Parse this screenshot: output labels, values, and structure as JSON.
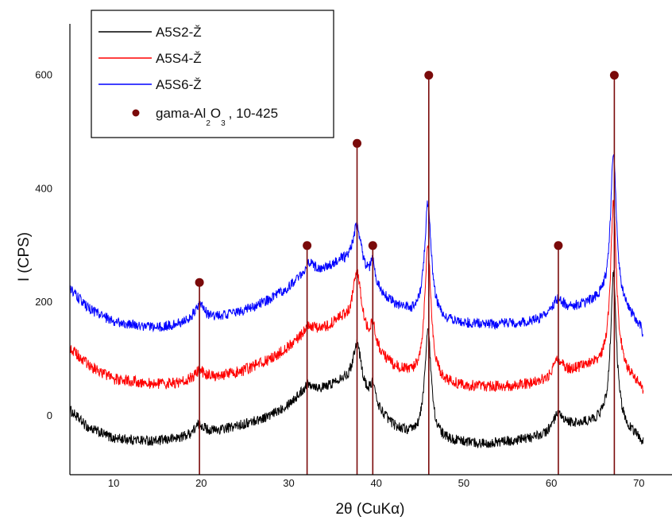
{
  "chart_data": {
    "type": "line",
    "title": "",
    "xlabel": "2θ (CuKα)",
    "ylabel": "I (CPS)",
    "xlim": [
      5,
      73
    ],
    "ylim": [
      -140,
      720
    ],
    "x_ticks": [
      10,
      20,
      30,
      40,
      50,
      60,
      70
    ],
    "y_ticks": [
      0,
      200,
      400,
      600
    ],
    "x_tick_labels": [
      "10",
      "20",
      "30",
      "40",
      "50",
      "60",
      "70"
    ],
    "y_tick_labels": [
      "0",
      "200",
      "400",
      "600"
    ],
    "grid": false,
    "legend_position": "top-left",
    "colors": {
      "series_1": "#000000",
      "series_2": "#ff0000",
      "series_3": "#0000ff",
      "reference": "#7a0a0a"
    },
    "series": [
      {
        "name": "A5S2-Ž",
        "color": "#000000",
        "noise": 9,
        "baseline": [
          [
            5,
            10
          ],
          [
            7,
            -20
          ],
          [
            10,
            -40
          ],
          [
            15,
            -45
          ],
          [
            20,
            -35
          ],
          [
            25,
            -15
          ],
          [
            28,
            0
          ],
          [
            30,
            20
          ],
          [
            32,
            40
          ],
          [
            34,
            45
          ],
          [
            36,
            60
          ],
          [
            38,
            40
          ],
          [
            40,
            10
          ],
          [
            42,
            -20
          ],
          [
            44,
            -35
          ],
          [
            46,
            -40
          ],
          [
            48,
            -45
          ],
          [
            52,
            -50
          ],
          [
            56,
            -45
          ],
          [
            60,
            -35
          ],
          [
            62,
            -20
          ],
          [
            64,
            -15
          ],
          [
            66,
            -10
          ],
          [
            68,
            -20
          ],
          [
            70,
            -40
          ],
          [
            70.5,
            -50
          ]
        ],
        "peaks": [
          [
            19.8,
            20,
            0.8
          ],
          [
            32.3,
            15,
            0.8
          ],
          [
            37.8,
            85,
            0.6
          ],
          [
            39.6,
            35,
            0.35
          ],
          [
            45.9,
            190,
            0.45
          ],
          [
            60.7,
            30,
            0.8
          ],
          [
            67.1,
            265,
            0.4
          ]
        ]
      },
      {
        "name": "A5S4-Ž",
        "color": "#ff0000",
        "noise": 10,
        "baseline": [
          [
            5,
            120
          ],
          [
            7,
            90
          ],
          [
            10,
            65
          ],
          [
            15,
            55
          ],
          [
            20,
            60
          ],
          [
            25,
            80
          ],
          [
            28,
            100
          ],
          [
            30,
            120
          ],
          [
            32,
            140
          ],
          [
            34,
            150
          ],
          [
            36,
            165
          ],
          [
            38,
            140
          ],
          [
            40,
            110
          ],
          [
            42,
            85
          ],
          [
            44,
            70
          ],
          [
            46,
            65
          ],
          [
            48,
            55
          ],
          [
            52,
            50
          ],
          [
            56,
            52
          ],
          [
            60,
            60
          ],
          [
            62,
            75
          ],
          [
            64,
            85
          ],
          [
            66,
            90
          ],
          [
            68,
            80
          ],
          [
            70,
            55
          ],
          [
            70.5,
            40
          ]
        ],
        "peaks": [
          [
            19.8,
            20,
            0.8
          ],
          [
            32.3,
            15,
            0.8
          ],
          [
            37.8,
            110,
            0.6
          ],
          [
            39.6,
            40,
            0.35
          ],
          [
            45.9,
            225,
            0.45
          ],
          [
            60.7,
            30,
            0.8
          ],
          [
            67.1,
            290,
            0.4
          ]
        ]
      },
      {
        "name": "A5S6-Ž",
        "color": "#0000ff",
        "noise": 9,
        "baseline": [
          [
            5,
            225
          ],
          [
            7,
            190
          ],
          [
            10,
            165
          ],
          [
            15,
            155
          ],
          [
            20,
            165
          ],
          [
            25,
            185
          ],
          [
            28,
            205
          ],
          [
            30,
            225
          ],
          [
            32,
            245
          ],
          [
            34,
            255
          ],
          [
            36,
            270
          ],
          [
            38,
            250
          ],
          [
            40,
            220
          ],
          [
            42,
            195
          ],
          [
            44,
            180
          ],
          [
            46,
            175
          ],
          [
            48,
            165
          ],
          [
            52,
            160
          ],
          [
            56,
            162
          ],
          [
            60,
            170
          ],
          [
            62,
            185
          ],
          [
            64,
            195
          ],
          [
            66,
            205
          ],
          [
            68,
            190
          ],
          [
            70,
            160
          ],
          [
            70.5,
            140
          ]
        ],
        "peaks": [
          [
            19.8,
            30,
            0.8
          ],
          [
            32.3,
            20,
            0.8
          ],
          [
            37.8,
            80,
            0.6
          ],
          [
            39.6,
            40,
            0.35
          ],
          [
            45.9,
            200,
            0.45
          ],
          [
            60.7,
            30,
            0.8
          ],
          [
            67.1,
            270,
            0.4
          ]
        ]
      }
    ],
    "reference": {
      "name_prefix": "gama-Al",
      "name_sub_1": "2",
      "name_mid": "O",
      "name_sub_2": "3",
      "name_suffix": ", 10-425",
      "color": "#7a0a0a",
      "peaks": [
        {
          "x": 19.8,
          "y": 235
        },
        {
          "x": 32.1,
          "y": 300
        },
        {
          "x": 37.8,
          "y": 480
        },
        {
          "x": 39.6,
          "y": 300
        },
        {
          "x": 46.0,
          "y": 600
        },
        {
          "x": 60.8,
          "y": 300
        },
        {
          "x": 67.2,
          "y": 600
        }
      ]
    }
  }
}
